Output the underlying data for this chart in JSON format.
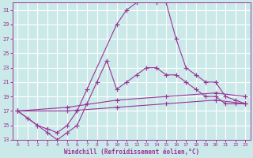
{
  "background_color": "#cce9e9",
  "grid_color": "#ffffff",
  "line_color": "#993399",
  "xlabel": "Windchill (Refroidissement éolien,°C)",
  "xlim": [
    -0.5,
    23.5
  ],
  "ylim": [
    13,
    32
  ],
  "yticks": [
    13,
    15,
    17,
    19,
    21,
    23,
    25,
    27,
    29,
    31
  ],
  "xticks": [
    0,
    1,
    2,
    3,
    4,
    5,
    6,
    7,
    8,
    9,
    10,
    11,
    12,
    13,
    14,
    15,
    16,
    17,
    18,
    19,
    20,
    21,
    22,
    23
  ],
  "series": [
    {
      "x": [
        0,
        1,
        2,
        3,
        4,
        5,
        6,
        7,
        10,
        11,
        12,
        13,
        14,
        15,
        16,
        17,
        18,
        19,
        20,
        21,
        22,
        23
      ],
      "y": [
        17,
        16,
        15,
        14.5,
        14,
        15,
        17,
        20,
        29,
        31,
        32,
        32.5,
        32,
        32,
        27,
        23,
        22,
        21,
        21,
        19,
        18.5,
        18
      ]
    },
    {
      "x": [
        0,
        2,
        3,
        4,
        5,
        6,
        7,
        8,
        9,
        10,
        11,
        12,
        13,
        14,
        15,
        16,
        17,
        18,
        19,
        20,
        21,
        22,
        23
      ],
      "y": [
        17,
        15,
        14,
        13,
        14,
        15,
        18,
        21,
        24,
        20,
        21,
        22,
        23,
        23,
        22,
        22,
        21,
        20,
        19,
        19,
        18,
        18,
        18
      ]
    },
    {
      "x": [
        0,
        5,
        10,
        15,
        20,
        23
      ],
      "y": [
        17,
        17.5,
        18.5,
        19,
        19.5,
        19
      ]
    },
    {
      "x": [
        0,
        5,
        10,
        15,
        20,
        23
      ],
      "y": [
        17,
        17,
        17.5,
        18,
        18.5,
        18
      ]
    }
  ]
}
